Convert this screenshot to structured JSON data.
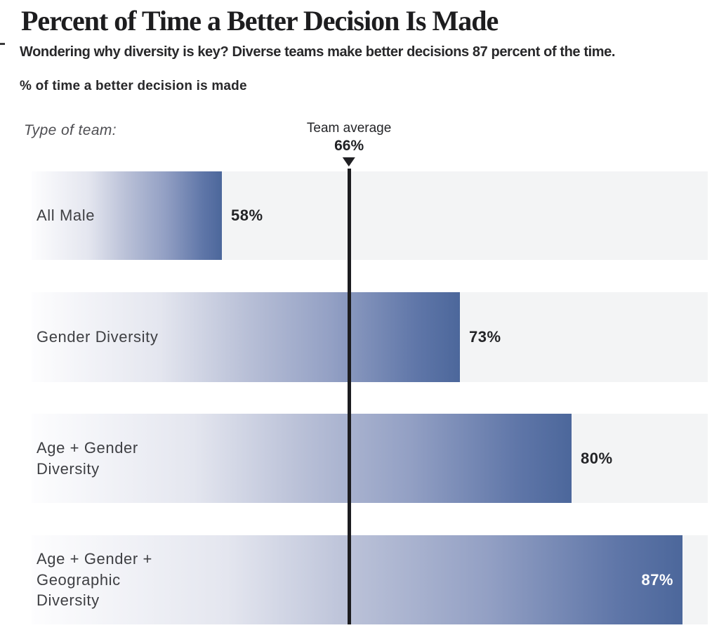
{
  "header": {
    "title": "Percent of Time a Better Decision Is Made",
    "subtitle": "Wondering why diversity is key? Diverse teams make better decisions 87 percent of the time.",
    "axis_caption": "% of time a better decision is made"
  },
  "chart_data": {
    "type": "bar",
    "orientation": "horizontal",
    "title": "Percent of Time a Better Decision Is Made",
    "subtitle": "Wondering why diversity is key? Diverse teams make better decisions 87 percent of the time.",
    "ylabel": "% of time a better decision is made",
    "categories_caption": "Type of team:",
    "categories": [
      "All Male",
      "Gender Diversity",
      "Age + Gender Diversity",
      "Age + Gender + Geographic Diversity"
    ],
    "values": [
      58,
      73,
      80,
      87
    ],
    "xlim": [
      46,
      88.6
    ],
    "grid": false,
    "legend_position": "none",
    "rows": [
      {
        "display_label": "All Male",
        "value": 58,
        "value_label": "58%",
        "value_inside": false
      },
      {
        "display_label": "Gender Diversity",
        "value": 73,
        "value_label": "73%",
        "value_inside": false
      },
      {
        "display_label": "Age + Gender\nDiversity",
        "value": 80,
        "value_label": "80%",
        "value_inside": false
      },
      {
        "display_label": "Age + Gender +\nGeographic\nDiversity",
        "value": 87,
        "value_label": "87%",
        "value_inside": true
      }
    ],
    "average": {
      "label": "Team average",
      "value": 66,
      "value_label": "66%"
    },
    "colors": {
      "bar_gradient_start": "#fdfdfe",
      "bar_gradient_end": "#4c679b",
      "row_background": "#f3f4f5",
      "average_line": "#1c1c1f",
      "title_text": "#1d1d1f",
      "label_text": "#3e3f43",
      "value_text": "#232427",
      "value_text_inside": "#ffffff"
    }
  }
}
